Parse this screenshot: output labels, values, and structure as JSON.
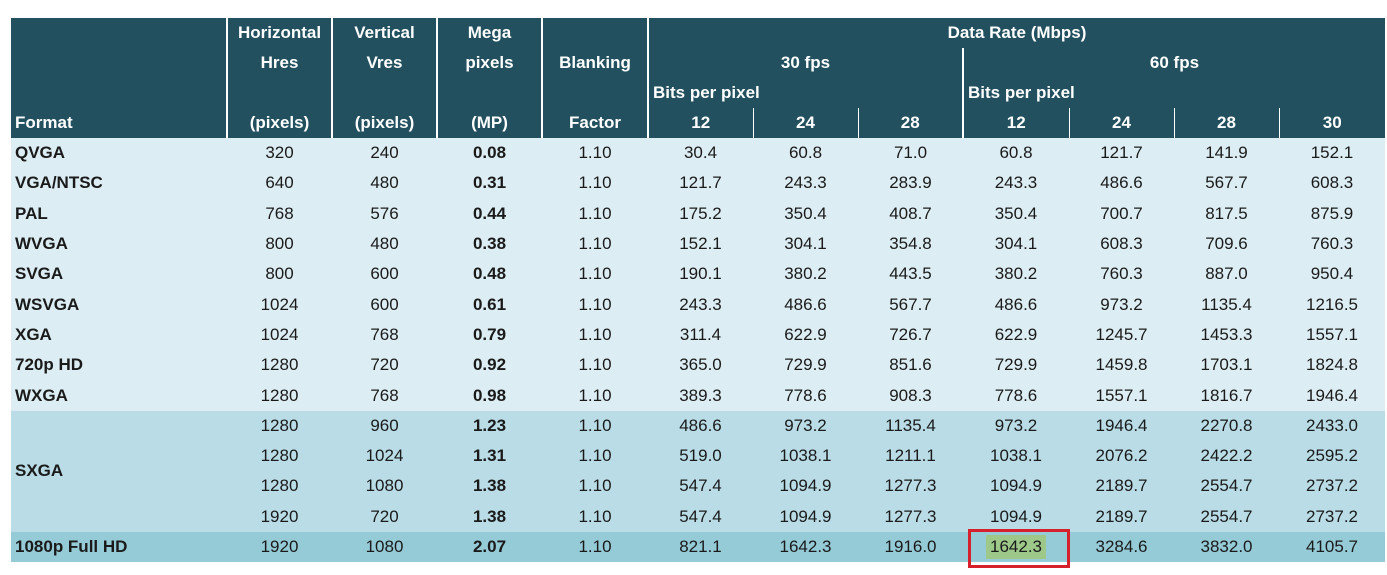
{
  "header": {
    "format": "Format",
    "horizontal": [
      "Horizontal",
      "Hres",
      "(pixels)"
    ],
    "vertical": [
      "Vertical",
      "Vres",
      "(pixels)"
    ],
    "megapixels": [
      "Mega",
      "pixels",
      "(MP)"
    ],
    "blanking": [
      "Blanking",
      "Factor"
    ],
    "data_rate": "Data Rate (Mbps)",
    "fps30": "30 fps",
    "fps60": "60 fps",
    "bits_per_pixel_30": "Bits per pixel",
    "bits_per_pixel_60": "Bits per pixel",
    "bpp30": [
      "12",
      "24",
      "28"
    ],
    "bpp60": [
      "12",
      "24",
      "28",
      "30"
    ]
  },
  "rows": [
    {
      "format": "QVGA",
      "h": "320",
      "v": "240",
      "mp": "0.08",
      "blank": "1.10",
      "r": [
        "30.4",
        "60.8",
        "71.0",
        "60.8",
        "121.7",
        "141.9",
        "152.1"
      ]
    },
    {
      "format": "VGA/NTSC",
      "h": "640",
      "v": "480",
      "mp": "0.31",
      "blank": "1.10",
      "r": [
        "121.7",
        "243.3",
        "283.9",
        "243.3",
        "486.6",
        "567.7",
        "608.3"
      ]
    },
    {
      "format": "PAL",
      "h": "768",
      "v": "576",
      "mp": "0.44",
      "blank": "1.10",
      "r": [
        "175.2",
        "350.4",
        "408.7",
        "350.4",
        "700.7",
        "817.5",
        "875.9"
      ]
    },
    {
      "format": "WVGA",
      "h": "800",
      "v": "480",
      "mp": "0.38",
      "blank": "1.10",
      "r": [
        "152.1",
        "304.1",
        "354.8",
        "304.1",
        "608.3",
        "709.6",
        "760.3"
      ]
    },
    {
      "format": "SVGA",
      "h": "800",
      "v": "600",
      "mp": "0.48",
      "blank": "1.10",
      "r": [
        "190.1",
        "380.2",
        "443.5",
        "380.2",
        "760.3",
        "887.0",
        "950.4"
      ]
    },
    {
      "format": "WSVGA",
      "h": "1024",
      "v": "600",
      "mp": "0.61",
      "blank": "1.10",
      "r": [
        "243.3",
        "486.6",
        "567.7",
        "486.6",
        "973.2",
        "1135.4",
        "1216.5"
      ]
    },
    {
      "format": "XGA",
      "h": "1024",
      "v": "768",
      "mp": "0.79",
      "blank": "1.10",
      "r": [
        "311.4",
        "622.9",
        "726.7",
        "622.9",
        "1245.7",
        "1453.3",
        "1557.1"
      ]
    },
    {
      "format": "720p HD",
      "h": "1280",
      "v": "720",
      "mp": "0.92",
      "blank": "1.10",
      "r": [
        "365.0",
        "729.9",
        "851.6",
        "729.9",
        "1459.8",
        "1703.1",
        "1824.8"
      ]
    },
    {
      "format": "WXGA",
      "h": "1280",
      "v": "768",
      "mp": "0.98",
      "blank": "1.10",
      "r": [
        "389.3",
        "778.6",
        "908.3",
        "778.6",
        "1557.1",
        "1816.7",
        "1946.4"
      ]
    }
  ],
  "sxga": {
    "format": "SXGA",
    "rows": [
      {
        "h": "1280",
        "v": "960",
        "mp": "1.23",
        "blank": "1.10",
        "r": [
          "486.6",
          "973.2",
          "1135.4",
          "973.2",
          "1946.4",
          "2270.8",
          "2433.0"
        ]
      },
      {
        "h": "1280",
        "v": "1024",
        "mp": "1.31",
        "blank": "1.10",
        "r": [
          "519.0",
          "1038.1",
          "1211.1",
          "1038.1",
          "2076.2",
          "2422.2",
          "2595.2"
        ]
      },
      {
        "h": "1280",
        "v": "1080",
        "mp": "1.38",
        "blank": "1.10",
        "r": [
          "547.4",
          "1094.9",
          "1277.3",
          "1094.9",
          "2189.7",
          "2554.7",
          "2737.2"
        ]
      },
      {
        "h": "1920",
        "v": "720",
        "mp": "1.38",
        "blank": "1.10",
        "r": [
          "547.4",
          "1094.9",
          "1277.3",
          "1094.9",
          "2189.7",
          "2554.7",
          "2737.2"
        ]
      }
    ]
  },
  "full_hd": {
    "format": "1080p Full HD",
    "h": "1920",
    "v": "1080",
    "mp": "2.07",
    "blank": "1.10",
    "r": [
      "821.1",
      "1642.3",
      "1916.0",
      "1642.3",
      "3284.6",
      "3832.0",
      "4105.7"
    ]
  },
  "highlight": {
    "row": "1080p Full HD",
    "column": "60 fps / 12 bpp",
    "fill_color": "#9dc88a",
    "box_color": "#d6202c"
  },
  "colors": {
    "header_bg": "#22505e",
    "band_light": "#dcedf3",
    "band_mid": "#b9dce6",
    "band_dark": "#95cad7"
  }
}
